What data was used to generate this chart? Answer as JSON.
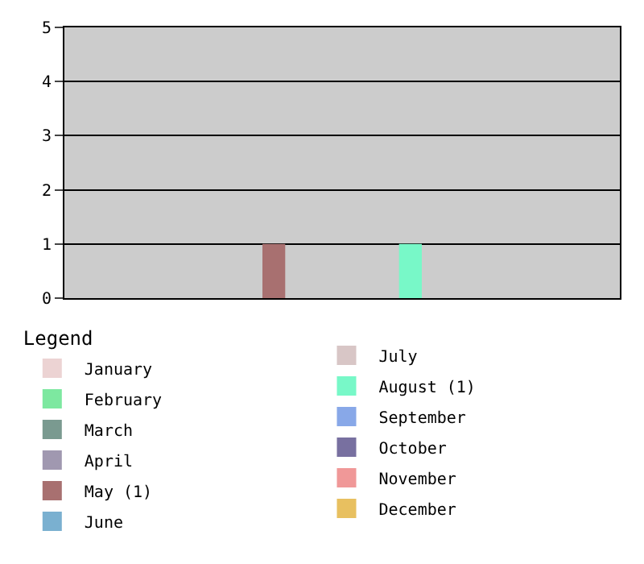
{
  "chart_data": {
    "type": "bar",
    "legend_title": "Legend",
    "categories": [
      null,
      null,
      null,
      null,
      null,
      null,
      null,
      null,
      null,
      null,
      null,
      null
    ],
    "series": [
      {
        "name": "January",
        "color": "#ecd3d3",
        "values": [
          0,
          null,
          null,
          null,
          null,
          null,
          null,
          null,
          null,
          null,
          null,
          null
        ]
      },
      {
        "name": "February",
        "color": "#7de8a0",
        "values": [
          null,
          0,
          null,
          null,
          null,
          null,
          null,
          null,
          null,
          null,
          null,
          null
        ]
      },
      {
        "name": "March",
        "color": "#7a9a90",
        "values": [
          null,
          null,
          0,
          null,
          null,
          null,
          null,
          null,
          null,
          null,
          null,
          null
        ]
      },
      {
        "name": "April",
        "color": "#a098b0",
        "values": [
          null,
          null,
          null,
          0,
          null,
          null,
          null,
          null,
          null,
          null,
          null,
          null
        ]
      },
      {
        "name": "May (1)",
        "color": "#a87070",
        "values": [
          null,
          null,
          null,
          null,
          1,
          null,
          null,
          null,
          null,
          null,
          null,
          null
        ]
      },
      {
        "name": "June",
        "color": "#7ab0d0",
        "values": [
          null,
          null,
          null,
          null,
          null,
          0,
          null,
          null,
          null,
          null,
          null,
          null
        ]
      },
      {
        "name": "July",
        "color": "#d8c6c6",
        "values": [
          null,
          null,
          null,
          null,
          null,
          null,
          0,
          null,
          null,
          null,
          null,
          null
        ]
      },
      {
        "name": "August (1)",
        "color": "#78f8c8",
        "values": [
          null,
          null,
          null,
          null,
          null,
          null,
          null,
          1,
          null,
          null,
          null,
          null
        ]
      },
      {
        "name": "September",
        "color": "#88a8e8",
        "values": [
          null,
          null,
          null,
          null,
          null,
          null,
          null,
          null,
          0,
          null,
          null,
          null
        ]
      },
      {
        "name": "October",
        "color": "#7870a0",
        "values": [
          null,
          null,
          null,
          null,
          null,
          null,
          null,
          null,
          null,
          0,
          null,
          null
        ]
      },
      {
        "name": "November",
        "color": "#f09898",
        "values": [
          null,
          null,
          null,
          null,
          null,
          null,
          null,
          null,
          null,
          null,
          0,
          null
        ]
      },
      {
        "name": "December",
        "color": "#e8c060",
        "values": [
          null,
          null,
          null,
          null,
          null,
          null,
          null,
          null,
          null,
          null,
          null,
          0
        ]
      }
    ],
    "ylim": [
      0,
      5
    ],
    "yticks": [
      0,
      1,
      2,
      3,
      4,
      5
    ],
    "grid": "y",
    "legend": "bottom",
    "tick_labels": "y"
  }
}
